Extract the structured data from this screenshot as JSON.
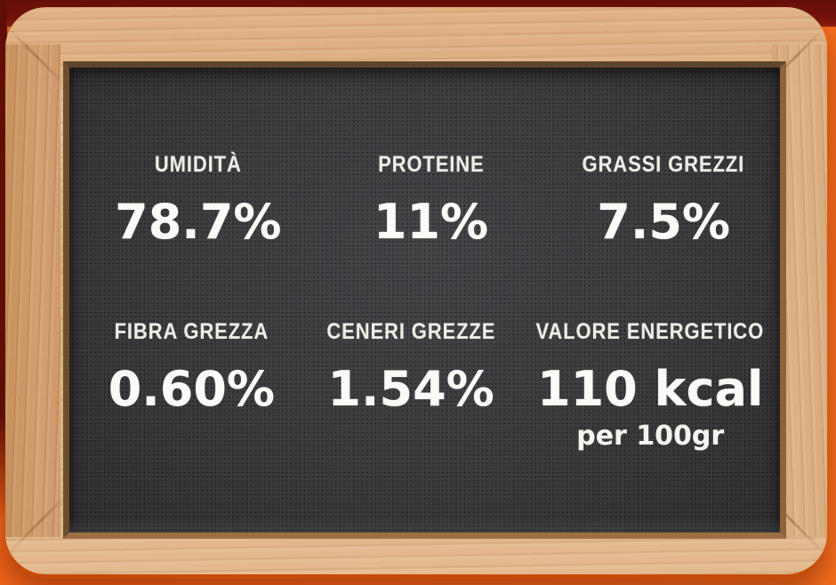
{
  "colors": {
    "background_orange": "#f2691c",
    "wall_shadow_maroon": "#6e110a",
    "wood_frame": "#ddb083",
    "slate": "#3a383b",
    "chalk_text": "#f7f5f1"
  },
  "nutrition": {
    "cells": [
      {
        "label": "UMIDITÀ",
        "value": "78.7%"
      },
      {
        "label": "PROTEINE",
        "value": "11%"
      },
      {
        "label": "GRASSI GREZZI",
        "value": "7.5%"
      },
      {
        "label": "FIBRA GREZZA",
        "value": "0.60%"
      },
      {
        "label": "CENERI GREZZE",
        "value": "1.54%"
      },
      {
        "label": "VALORE ENERGETICO",
        "value": "110 kcal",
        "subvalue": "per 100gr"
      }
    ]
  }
}
